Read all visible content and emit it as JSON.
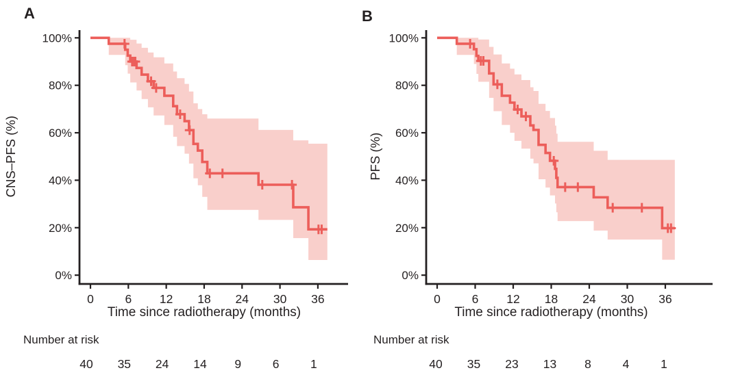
{
  "figure": {
    "panels": [
      {
        "letter": "A",
        "y_axis_title": "CNS–PFS (%)",
        "x_axis_title": "Time since radiotherapy (months)",
        "risk_label": "Number at risk",
        "risk_numbers": [
          "40",
          "35",
          "24",
          "14",
          "9",
          "6",
          "1"
        ]
      },
      {
        "letter": "B",
        "y_axis_title": "PFS (%)",
        "x_axis_title": "Time since radiotherapy (months)",
        "risk_label": "Number at risk",
        "risk_numbers": [
          "40",
          "35",
          "23",
          "13",
          "8",
          "4",
          "1"
        ]
      }
    ],
    "colors": {
      "curve": "#ec5e5a",
      "band": "#f9cfcb",
      "text": "#231f20",
      "axis": "#231f20"
    }
  },
  "chart_data": [
    {
      "type": "line",
      "subtype": "kaplan-meier",
      "panel": "A",
      "title": "A",
      "ylabel": "CNS–PFS (%)",
      "xlabel": "Time since radiotherapy (months)",
      "xlim": [
        0,
        40.8
      ],
      "ylim": [
        0,
        100
      ],
      "x_ticks": [
        0,
        6,
        12,
        18,
        24,
        30,
        36
      ],
      "y_ticks": [
        0,
        20,
        40,
        60,
        80,
        100
      ],
      "y_tick_labels": [
        "0%",
        "20%",
        "40%",
        "60%",
        "80%",
        "100%"
      ],
      "grid": false,
      "legend": "none",
      "end_time": 37.5,
      "steps_format": [
        "time_months",
        "survival_pct",
        "ci_upper_pct",
        "ci_lower_pct"
      ],
      "steps": [
        [
          0,
          100,
          100,
          100
        ],
        [
          2.9,
          97.5,
          100,
          92.8
        ],
        [
          5.5,
          95.0,
          100,
          88.5
        ],
        [
          5.9,
          92.5,
          100,
          84.9
        ],
        [
          6.3,
          90.0,
          99.2,
          81.2
        ],
        [
          7.3,
          87.3,
          97.6,
          77.8
        ],
        [
          8.1,
          84.5,
          95.8,
          74.2
        ],
        [
          9.1,
          81.7,
          93.8,
          70.7
        ],
        [
          10.0,
          78.9,
          91.8,
          67.3
        ],
        [
          11.7,
          75.6,
          89.2,
          63.3
        ],
        [
          13.1,
          71.2,
          85.8,
          58.3
        ],
        [
          13.7,
          67.8,
          83.0,
          54.4
        ],
        [
          14.9,
          64.9,
          80.6,
          51.2
        ],
        [
          15.6,
          61.1,
          77.4,
          47.0
        ],
        [
          16.3,
          55.3,
          72.4,
          40.8
        ],
        [
          17.0,
          52.5,
          70.0,
          37.9
        ],
        [
          17.7,
          47.7,
          67.8,
          33.0
        ],
        [
          18.5,
          42.9,
          66.0,
          27.5
        ],
        [
          26.6,
          38.1,
          61.2,
          23.3
        ],
        [
          32.1,
          28.6,
          56.8,
          15.6
        ],
        [
          34.5,
          19.3,
          55.4,
          6.4
        ]
      ],
      "censors": [
        [
          5.4,
          97.5
        ],
        [
          6.6,
          90.0
        ],
        [
          6.9,
          90.0
        ],
        [
          7.1,
          90.0
        ],
        [
          9.6,
          81.7
        ],
        [
          10.4,
          78.9
        ],
        [
          14.2,
          67.8
        ],
        [
          15.7,
          61.1
        ],
        [
          18.9,
          42.9
        ],
        [
          20.9,
          42.9
        ],
        [
          27.2,
          38.1
        ],
        [
          31.9,
          38.1
        ],
        [
          36.1,
          19.3
        ],
        [
          36.6,
          19.3
        ]
      ],
      "number_at_risk": {
        "times": [
          0,
          6,
          12,
          18,
          24,
          30,
          36
        ],
        "values": [
          40,
          35,
          24,
          14,
          9,
          6,
          1
        ]
      }
    },
    {
      "type": "line",
      "subtype": "kaplan-meier",
      "panel": "B",
      "title": "B",
      "ylabel": "PFS (%)",
      "xlabel": "Time since radiotherapy (months)",
      "xlim": [
        0,
        40.8
      ],
      "ylim": [
        0,
        100
      ],
      "x_ticks": [
        0,
        6,
        12,
        18,
        24,
        30,
        36
      ],
      "y_ticks": [
        0,
        20,
        40,
        60,
        80,
        100
      ],
      "y_tick_labels": [
        "0%",
        "20%",
        "40%",
        "60%",
        "80%",
        "100%"
      ],
      "grid": false,
      "legend": "none",
      "end_time": 37.5,
      "steps_format": [
        "time_months",
        "survival_pct",
        "ci_upper_pct",
        "ci_lower_pct"
      ],
      "steps": [
        [
          0,
          100,
          100,
          100
        ],
        [
          3.1,
          97.5,
          100,
          92.8
        ],
        [
          5.8,
          95.2,
          100,
          89.0
        ],
        [
          6.2,
          92.4,
          100,
          84.8
        ],
        [
          6.5,
          90.3,
          99.3,
          81.5
        ],
        [
          8.2,
          85.0,
          96.2,
          74.7
        ],
        [
          8.9,
          80.4,
          93.0,
          69.1
        ],
        [
          10.2,
          75.6,
          89.2,
          63.3
        ],
        [
          11.5,
          72.7,
          87.0,
          60.0
        ],
        [
          12.2,
          69.8,
          84.6,
          56.6
        ],
        [
          13.3,
          66.9,
          82.2,
          53.3
        ],
        [
          14.7,
          63.1,
          79.2,
          49.1
        ],
        [
          15.2,
          61.2,
          77.6,
          47.1
        ],
        [
          16.0,
          54.9,
          72.2,
          40.4
        ],
        [
          17.1,
          51.5,
          69.2,
          36.9
        ],
        [
          17.8,
          48.2,
          66.2,
          33.6
        ],
        [
          18.6,
          44.8,
          63.0,
          30.2
        ],
        [
          18.8,
          41.0,
          59.6,
          26.5
        ],
        [
          19.0,
          37.1,
          56.2,
          22.8
        ],
        [
          24.7,
          32.8,
          52.4,
          18.8
        ],
        [
          26.9,
          28.4,
          48.6,
          15.0
        ],
        [
          35.5,
          19.8,
          48.6,
          6.5
        ]
      ],
      "censors": [
        [
          5.2,
          97.5
        ],
        [
          6.9,
          90.3
        ],
        [
          7.3,
          90.3
        ],
        [
          9.5,
          80.4
        ],
        [
          12.7,
          69.8
        ],
        [
          14.0,
          66.9
        ],
        [
          18.4,
          48.2
        ],
        [
          20.2,
          37.1
        ],
        [
          22.2,
          37.1
        ],
        [
          27.7,
          28.4
        ],
        [
          32.3,
          28.4
        ],
        [
          36.4,
          19.8
        ],
        [
          36.9,
          19.8
        ]
      ],
      "number_at_risk": {
        "times": [
          0,
          6,
          12,
          18,
          24,
          30,
          36
        ],
        "values": [
          40,
          35,
          23,
          13,
          8,
          4,
          1
        ]
      }
    }
  ]
}
